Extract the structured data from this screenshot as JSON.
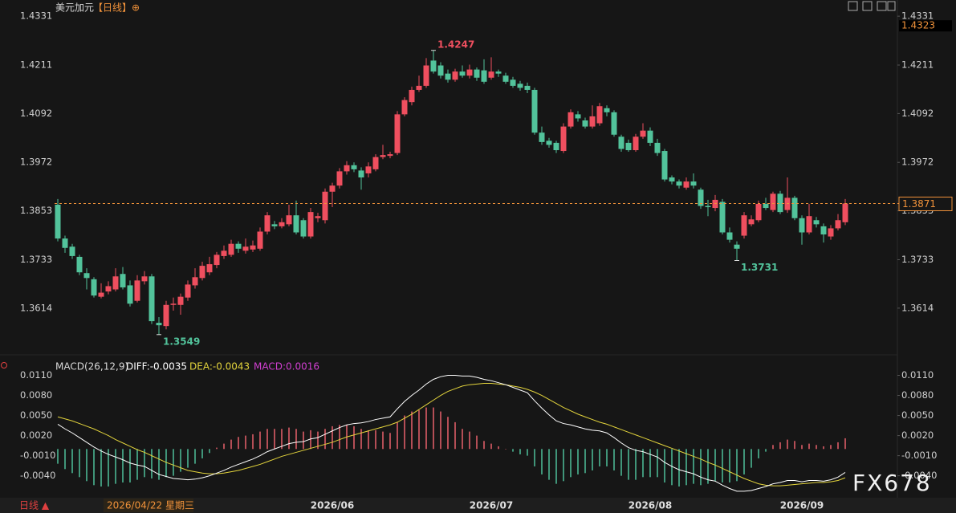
{
  "header": {
    "symbol": "美元加元",
    "period": "【日线】",
    "icon": "⊕"
  },
  "chart_data": [
    {
      "type": "candlestick",
      "up_color": "#ef4f5f",
      "down_color": "#52c39b",
      "ylim": [
        1.3523,
        1.4351
      ],
      "yticks": [
        1.4331,
        1.4211,
        1.4092,
        1.3972,
        1.3853,
        1.3733,
        1.3614
      ],
      "grid": false,
      "annotations": [
        1.4247,
        1.3549,
        1.3731
      ],
      "last_price": 1.3871,
      "last_price_color": "#f0923a",
      "top_price": 1.4323,
      "candles": {
        "open": [
          1.3868,
          1.3785,
          1.3765,
          1.374,
          1.37,
          1.3685,
          1.3642,
          1.3655,
          1.366,
          1.3698,
          1.367,
          1.3632,
          1.368,
          1.3692,
          1.3578,
          1.357,
          1.3622,
          1.3622,
          1.364,
          1.367,
          1.3688,
          1.3702,
          1.372,
          1.3742,
          1.3745,
          1.3772,
          1.3755,
          1.3758,
          1.376,
          1.3802,
          1.382,
          1.3815,
          1.382,
          1.3842,
          1.383,
          1.379,
          1.3835,
          1.383,
          1.39,
          1.3915,
          1.395,
          1.3965,
          1.3952,
          1.3945,
          1.3955,
          1.3985,
          1.3988,
          1.3995,
          1.409,
          1.412,
          1.415,
          1.416,
          1.4222,
          1.421,
          1.419,
          1.4175,
          1.4195,
          1.4185,
          1.42,
          1.4198,
          1.418,
          1.4195,
          1.4185,
          1.4175,
          1.4165,
          1.416,
          1.415,
          1.4045,
          1.4025,
          1.402,
          1.4,
          1.406,
          1.409,
          1.4075,
          1.406,
          1.4068,
          1.4105,
          1.4095,
          1.4035,
          1.402,
          1.4002,
          1.4035,
          1.405,
          1.402,
          1.4,
          1.3935,
          1.3925,
          1.391,
          1.3925,
          1.3905,
          1.3865,
          1.386,
          1.3875,
          1.38,
          1.377,
          1.3792,
          1.382,
          1.383,
          1.387,
          1.3855,
          1.3895,
          1.3855,
          1.3885,
          1.3835,
          1.38,
          1.383,
          1.3815,
          1.379,
          1.381,
          1.3825
        ],
        "high": [
          1.3882,
          1.3792,
          1.3772,
          1.3745,
          1.3712,
          1.369,
          1.3675,
          1.368,
          1.3712,
          1.3715,
          1.3682,
          1.3695,
          1.3705,
          1.3698,
          1.3592,
          1.3632,
          1.364,
          1.365,
          1.3682,
          1.3712,
          1.3728,
          1.374,
          1.3752,
          1.3768,
          1.3782,
          1.3778,
          1.3785,
          1.378,
          1.3812,
          1.385,
          1.3828,
          1.3835,
          1.3868,
          1.3878,
          1.3835,
          1.386,
          1.3848,
          1.3908,
          1.3922,
          1.3958,
          1.3975,
          1.3972,
          1.396,
          1.3972,
          1.3992,
          1.4015,
          1.3998,
          1.4098,
          1.4132,
          1.4158,
          1.4185,
          1.4228,
          1.4247,
          1.4218,
          1.42,
          1.4202,
          1.421,
          1.4212,
          1.4205,
          1.4225,
          1.423,
          1.42,
          1.4192,
          1.4182,
          1.4172,
          1.4168,
          1.4155,
          1.406,
          1.4032,
          1.4025,
          1.4068,
          1.4102,
          1.4098,
          1.4082,
          1.4112,
          1.4118,
          1.4112,
          1.41,
          1.404,
          1.4028,
          1.4042,
          1.4068,
          1.4058,
          1.403,
          1.4005,
          1.394,
          1.393,
          1.3935,
          1.3945,
          1.391,
          1.388,
          1.3892,
          1.3882,
          1.3812,
          1.3778,
          1.385,
          1.3842,
          1.3878,
          1.3885,
          1.39,
          1.3902,
          1.3935,
          1.389,
          1.3842,
          1.387,
          1.3838,
          1.3822,
          1.3818,
          1.3845,
          1.3882
        ],
        "low": [
          1.3778,
          1.375,
          1.3735,
          1.3695,
          1.366,
          1.364,
          1.3638,
          1.3648,
          1.3655,
          1.366,
          1.3618,
          1.3628,
          1.3672,
          1.3575,
          1.3549,
          1.3562,
          1.3608,
          1.3598,
          1.3632,
          1.3662,
          1.3682,
          1.3695,
          1.3712,
          1.3735,
          1.374,
          1.375,
          1.3748,
          1.3752,
          1.3755,
          1.3795,
          1.3808,
          1.381,
          1.3815,
          1.3795,
          1.3785,
          1.3785,
          1.3825,
          1.3822,
          1.3862,
          1.3908,
          1.3942,
          1.3948,
          1.3905,
          1.3935,
          1.395,
          1.398,
          1.3982,
          1.399,
          1.4085,
          1.4112,
          1.4145,
          1.4155,
          1.419,
          1.4178,
          1.4168,
          1.417,
          1.418,
          1.4178,
          1.4172,
          1.4165,
          1.4175,
          1.4182,
          1.4165,
          1.4155,
          1.4148,
          1.4142,
          1.404,
          1.4015,
          1.4008,
          1.3995,
          1.3995,
          1.4055,
          1.4072,
          1.4055,
          1.4055,
          1.4062,
          1.4085,
          1.4035,
          1.3998,
          1.3998,
          1.3998,
          1.403,
          1.4012,
          1.3988,
          1.3925,
          1.3918,
          1.3908,
          1.3905,
          1.3908,
          1.3858,
          1.384,
          1.3852,
          1.3795,
          1.3775,
          1.3731,
          1.3785,
          1.3815,
          1.3825,
          1.3855,
          1.385,
          1.3845,
          1.3848,
          1.383,
          1.377,
          1.3795,
          1.3812,
          1.3775,
          1.3782,
          1.3805,
          1.3818
        ],
        "close": [
          1.3785,
          1.3762,
          1.3742,
          1.3702,
          1.3688,
          1.3645,
          1.3652,
          1.3668,
          1.3692,
          1.3665,
          1.3625,
          1.3682,
          1.3692,
          1.3582,
          1.3572,
          1.3622,
          1.3625,
          1.3642,
          1.3672,
          1.369,
          1.3718,
          1.3722,
          1.3745,
          1.3755,
          1.3772,
          1.376,
          1.3765,
          1.3768,
          1.3802,
          1.3842,
          1.3815,
          1.3825,
          1.3842,
          1.38,
          1.379,
          1.385,
          1.384,
          1.39,
          1.3915,
          1.395,
          1.3965,
          1.3955,
          1.3935,
          1.3962,
          1.3985,
          1.399,
          1.3992,
          1.409,
          1.4125,
          1.415,
          1.416,
          1.421,
          1.4195,
          1.4185,
          1.4175,
          1.4195,
          1.4185,
          1.42,
          1.418,
          1.417,
          1.4195,
          1.419,
          1.417,
          1.416,
          1.4155,
          1.415,
          1.4045,
          1.4022,
          1.4015,
          1.4002,
          1.406,
          1.4095,
          1.408,
          1.406,
          1.4085,
          1.411,
          1.4095,
          1.404,
          1.4005,
          1.4002,
          1.4035,
          1.405,
          1.402,
          1.3995,
          1.393,
          1.3925,
          1.3915,
          1.3925,
          1.3915,
          1.3865,
          1.3862,
          1.388,
          1.38,
          1.3782,
          1.376,
          1.3842,
          1.3832,
          1.387,
          1.386,
          1.3895,
          1.385,
          1.3885,
          1.3835,
          1.38,
          1.384,
          1.382,
          1.3795,
          1.381,
          1.383,
          1.3871
        ]
      }
    },
    {
      "type": "macd",
      "title": "MACD(26,12,9)",
      "ylim": [
        -0.0068,
        0.0119
      ],
      "yticks": [
        {
          "value": 0.011,
          "label": "0.0110"
        },
        {
          "value": 0.008,
          "label": "0.0080"
        },
        {
          "value": 0.005,
          "label": "0.0050"
        },
        {
          "value": 0.002,
          "label": "0.0020"
        },
        {
          "value": -0.001,
          "label": "-0.0010"
        },
        {
          "value": -0.004,
          "label": "-0.0040"
        }
      ],
      "categories": [
        null,
        null,
        null,
        null,
        null,
        null,
        null,
        null,
        null,
        null,
        null,
        null,
        null,
        null,
        null,
        null,
        null,
        null,
        null,
        null,
        null,
        null,
        null,
        null,
        null,
        null,
        null,
        null,
        null,
        null,
        null,
        null,
        null,
        null,
        null,
        null,
        null,
        null,
        "2026/06",
        null,
        null,
        null,
        null,
        null,
        null,
        null,
        null,
        null,
        null,
        null,
        null,
        null,
        null,
        null,
        null,
        null,
        null,
        null,
        null,
        null,
        "2026/07",
        null,
        null,
        null,
        null,
        null,
        null,
        null,
        null,
        null,
        null,
        null,
        null,
        null,
        null,
        null,
        null,
        null,
        null,
        null,
        null,
        null,
        "2026/08",
        null,
        null,
        null,
        null,
        null,
        null,
        null,
        null,
        null,
        null,
        null,
        null,
        null,
        null,
        null,
        null,
        null,
        null,
        null,
        null,
        "2026/09",
        null,
        null,
        null,
        null,
        null,
        null
      ],
      "series": [
        {
          "label": "DIFF:-0.0035",
          "color": "#ffffff",
          "values": [
            0.0037,
            0.003,
            0.0024,
            0.0017,
            0.001,
            0.0003,
            -0.0003,
            -0.0008,
            -0.0012,
            -0.0016,
            -0.0021,
            -0.0024,
            -0.0026,
            -0.0032,
            -0.0038,
            -0.0041,
            -0.0044,
            -0.0045,
            -0.0046,
            -0.0045,
            -0.0043,
            -0.004,
            -0.0036,
            -0.0032,
            -0.0027,
            -0.0023,
            -0.0019,
            -0.0015,
            -0.001,
            -0.0004,
            0.0,
            0.0004,
            0.0008,
            0.001,
            0.0011,
            0.0015,
            0.0017,
            0.0022,
            0.0027,
            0.0032,
            0.0036,
            0.0038,
            0.0039,
            0.0041,
            0.0044,
            0.0046,
            0.0048,
            0.006,
            0.0071,
            0.008,
            0.0088,
            0.0097,
            0.0104,
            0.0108,
            0.011,
            0.011,
            0.0109,
            0.0109,
            0.0107,
            0.0104,
            0.0102,
            0.0099,
            0.0096,
            0.0092,
            0.0088,
            0.0084,
            0.0072,
            0.0061,
            0.0051,
            0.0042,
            0.0038,
            0.0036,
            0.0033,
            0.003,
            0.0028,
            0.0027,
            0.0024,
            0.0017,
            0.0009,
            0.0002,
            -0.0002,
            -0.0004,
            -0.0008,
            -0.0012,
            -0.002,
            -0.0026,
            -0.0031,
            -0.0034,
            -0.0037,
            -0.0042,
            -0.0046,
            -0.0048,
            -0.0054,
            -0.0059,
            -0.0063,
            -0.0063,
            -0.0062,
            -0.0059,
            -0.0056,
            -0.0052,
            -0.005,
            -0.0047,
            -0.0047,
            -0.0049,
            -0.0047,
            -0.0047,
            -0.0048,
            -0.0046,
            -0.0042,
            -0.0035
          ]
        },
        {
          "label": "DEA:-0.0043",
          "color": "#e3d43c",
          "values": [
            0.0048,
            0.0045,
            0.0042,
            0.0038,
            0.0034,
            0.003,
            0.0025,
            0.002,
            0.0014,
            0.0009,
            0.0004,
            -0.0001,
            -0.0005,
            -0.001,
            -0.0015,
            -0.002,
            -0.0024,
            -0.0028,
            -0.0032,
            -0.0034,
            -0.0036,
            -0.0037,
            -0.0037,
            -0.0036,
            -0.0034,
            -0.0032,
            -0.0029,
            -0.0026,
            -0.0023,
            -0.0019,
            -0.0015,
            -0.0011,
            -0.0008,
            -0.0005,
            -0.0002,
            0.0001,
            0.0004,
            0.0007,
            0.001,
            0.0014,
            0.0018,
            0.0021,
            0.0024,
            0.0027,
            0.003,
            0.0033,
            0.0036,
            0.004,
            0.0046,
            0.0052,
            0.0059,
            0.0066,
            0.0073,
            0.008,
            0.0086,
            0.009,
            0.0094,
            0.0096,
            0.0097,
            0.0098,
            0.0098,
            0.0097,
            0.0096,
            0.0094,
            0.0092,
            0.0089,
            0.0085,
            0.008,
            0.0074,
            0.0068,
            0.0062,
            0.0057,
            0.0052,
            0.0048,
            0.0044,
            0.004,
            0.0037,
            0.0033,
            0.0029,
            0.0025,
            0.0021,
            0.0017,
            0.0013,
            0.0009,
            0.0005,
            0.0001,
            -0.0003,
            -0.0007,
            -0.0011,
            -0.0015,
            -0.002,
            -0.0024,
            -0.0029,
            -0.0034,
            -0.0039,
            -0.0044,
            -0.0048,
            -0.0052,
            -0.0054,
            -0.0055,
            -0.0055,
            -0.0054,
            -0.0053,
            -0.0052,
            -0.0051,
            -0.005,
            -0.005,
            -0.0049,
            -0.0047,
            -0.0043
          ]
        },
        {
          "label": "MACD:0.0016",
          "color": "#d23fd2",
          "up_color": "#e8606c",
          "down_color": "#4fbf9a",
          "values": [
            -0.0022,
            -0.003,
            -0.0036,
            -0.0042,
            -0.0048,
            -0.0054,
            -0.0056,
            -0.0056,
            -0.0052,
            -0.005,
            -0.005,
            -0.0046,
            -0.0042,
            -0.0044,
            -0.0046,
            -0.0042,
            -0.004,
            -0.0034,
            -0.0028,
            -0.0022,
            -0.0014,
            -0.0006,
            0.0002,
            0.0008,
            0.0014,
            0.0018,
            0.002,
            0.0022,
            0.0026,
            0.003,
            0.003,
            0.003,
            0.0032,
            0.003,
            0.0026,
            0.0028,
            0.0026,
            0.003,
            0.0034,
            0.0036,
            0.0036,
            0.0034,
            0.003,
            0.0028,
            0.0028,
            0.0026,
            0.0024,
            0.004,
            0.005,
            0.0056,
            0.0058,
            0.0062,
            0.0062,
            0.0056,
            0.0048,
            0.004,
            0.003,
            0.0026,
            0.002,
            0.0012,
            0.0008,
            0.0004,
            0.0,
            -0.0004,
            -0.0008,
            -0.001,
            -0.0026,
            -0.0038,
            -0.0046,
            -0.0052,
            -0.0048,
            -0.0042,
            -0.0038,
            -0.0036,
            -0.0032,
            -0.0026,
            -0.0026,
            -0.0032,
            -0.004,
            -0.0046,
            -0.0046,
            -0.0042,
            -0.0042,
            -0.0042,
            -0.005,
            -0.0054,
            -0.0056,
            -0.0054,
            -0.0052,
            -0.0054,
            -0.0052,
            -0.0048,
            -0.005,
            -0.005,
            -0.0048,
            -0.0038,
            -0.0028,
            -0.0014,
            -0.0004,
            0.0006,
            0.001,
            0.0014,
            0.0012,
            0.0006,
            0.0008,
            0.0006,
            0.0004,
            0.0006,
            0.001,
            0.0016
          ]
        }
      ]
    }
  ],
  "footer": {
    "period": "日线 ▲",
    "cursor_date": "2026/04/22 星期三",
    "watermark": "FX678"
  }
}
